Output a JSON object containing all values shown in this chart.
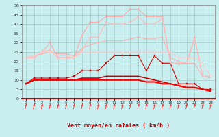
{
  "xlabel": "Vent moyen/en rafales ( km/h )",
  "x": [
    0,
    1,
    2,
    3,
    4,
    5,
    6,
    7,
    8,
    9,
    10,
    11,
    12,
    13,
    14,
    15,
    16,
    17,
    18,
    19,
    20,
    21,
    22,
    23
  ],
  "series": [
    {
      "color": "#dd0000",
      "linewidth": 0.8,
      "marker": "s",
      "markersize": 1.8,
      "y": [
        8,
        11,
        11,
        11,
        11,
        11,
        12,
        15,
        15,
        15,
        19,
        23,
        23,
        23,
        23,
        15,
        23,
        19,
        19,
        8,
        8,
        8,
        5,
        5
      ]
    },
    {
      "color": "#cc0000",
      "linewidth": 1.2,
      "marker": null,
      "markersize": 0,
      "y": [
        8,
        10,
        10,
        10,
        10,
        10,
        10,
        11,
        11,
        11,
        12,
        12,
        12,
        12,
        12,
        11,
        10,
        9,
        8,
        7,
        6,
        6,
        5,
        4
      ]
    },
    {
      "color": "#ff0000",
      "linewidth": 1.5,
      "marker": null,
      "markersize": 0,
      "y": [
        8,
        10,
        10,
        10,
        10,
        10,
        10,
        10,
        10,
        10,
        10,
        10,
        10,
        10,
        10,
        9,
        9,
        8,
        8,
        7,
        6,
        6,
        5,
        4
      ]
    },
    {
      "color": "#ffaaaa",
      "linewidth": 0.8,
      "marker": "s",
      "markersize": 1.8,
      "y": [
        22,
        22,
        25,
        30,
        22,
        22,
        22,
        34,
        41,
        41,
        44,
        44,
        44,
        48,
        48,
        44,
        44,
        44,
        19,
        19,
        19,
        33,
        12,
        12
      ]
    },
    {
      "color": "#ffbbbb",
      "linewidth": 0.8,
      "marker": "s",
      "markersize": 1.8,
      "y": [
        22,
        22,
        25,
        26,
        22,
        22,
        22,
        26,
        33,
        33,
        41,
        40,
        40,
        41,
        44,
        40,
        40,
        43,
        19,
        19,
        19,
        32,
        12,
        12
      ]
    },
    {
      "color": "#ffcccc",
      "linewidth": 0.8,
      "marker": "s",
      "markersize": 1.8,
      "y": [
        22,
        23,
        25,
        25,
        23,
        23,
        22,
        25,
        25,
        25,
        25,
        25,
        25,
        25,
        25,
        25,
        25,
        25,
        25,
        22,
        22,
        22,
        19,
        12
      ]
    },
    {
      "color": "#ffaaaa",
      "linewidth": 0.7,
      "marker": null,
      "markersize": 0,
      "y": [
        22,
        23,
        24,
        25,
        24,
        24,
        23,
        27,
        29,
        30,
        31,
        31,
        31,
        32,
        33,
        32,
        32,
        33,
        22,
        20,
        19,
        19,
        12,
        11
      ]
    }
  ],
  "ylim": [
    0,
    50
  ],
  "yticks": [
    0,
    5,
    10,
    15,
    20,
    25,
    30,
    35,
    40,
    45,
    50
  ],
  "xlim": [
    -0.5,
    23.5
  ],
  "bg_color": "#c8eef0",
  "grid_color": "#a0ccc8",
  "arrow_color": "#ee3333",
  "xlabel_color": "#cc0000"
}
